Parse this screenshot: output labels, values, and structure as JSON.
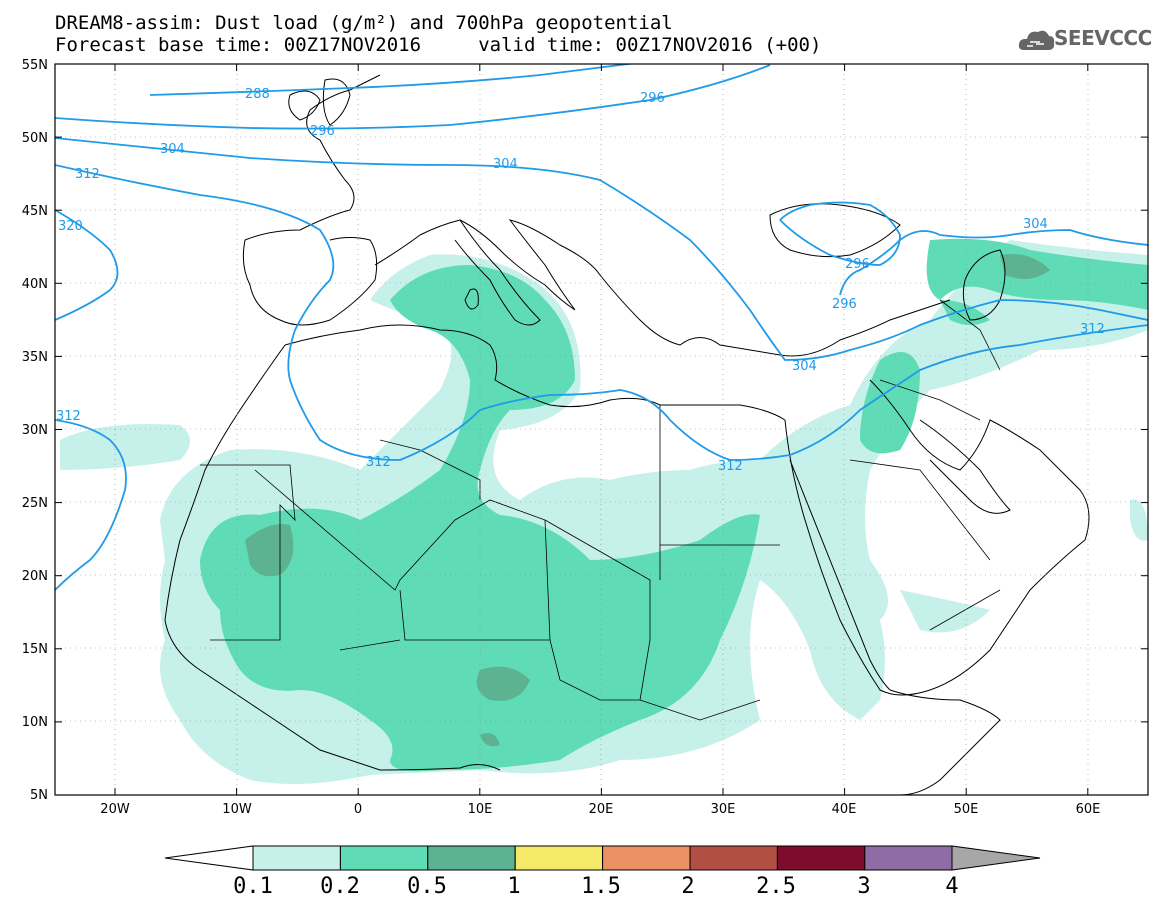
{
  "header": {
    "title_line1": "DREAM8-assim: Dust load (g/m²) and 700hPa geopotential",
    "title_line2": "Forecast base time: 00Z17NOV2016     valid time: 00Z17NOV2016 (+00)",
    "logo_text": "SEEVCCC",
    "logo_icon": "cloud-icon"
  },
  "map": {
    "lat_labels": [
      "55N",
      "50N",
      "45N",
      "40N",
      "35N",
      "30N",
      "25N",
      "20N",
      "15N",
      "10N",
      "5N"
    ],
    "lon_labels": [
      "20W",
      "10W",
      "0",
      "10E",
      "20E",
      "30E",
      "40E",
      "50E",
      "60E"
    ],
    "contour_labels": [
      "288",
      "296",
      "296",
      "304",
      "304",
      "312",
      "320",
      "312",
      "312",
      "312",
      "296",
      "296",
      "304",
      "304",
      "312"
    ],
    "colors": {
      "contour": "#1f9be8",
      "dust_01": "#c6f0ea",
      "dust_02": "#5fdcb6",
      "dust_05": "#5db391",
      "dust_1": "#f5e96a",
      "dust_15": "#ec9066",
      "dust_2": "#b24f45",
      "dust_25": "#7c0d2c",
      "dust_3": "#8f6ca4",
      "dust_4": "#a7a7a7"
    }
  },
  "colorbar": {
    "labels": [
      "0.1",
      "0.2",
      "0.5",
      "1",
      "1.5",
      "2",
      "2.5",
      "3",
      "4"
    ],
    "colors": [
      "#c6f0ea",
      "#5fdcb6",
      "#5db391",
      "#f5e96a",
      "#ec9066",
      "#b24f45",
      "#7c0d2c",
      "#8f6ca4",
      "#a7a7a7"
    ]
  }
}
